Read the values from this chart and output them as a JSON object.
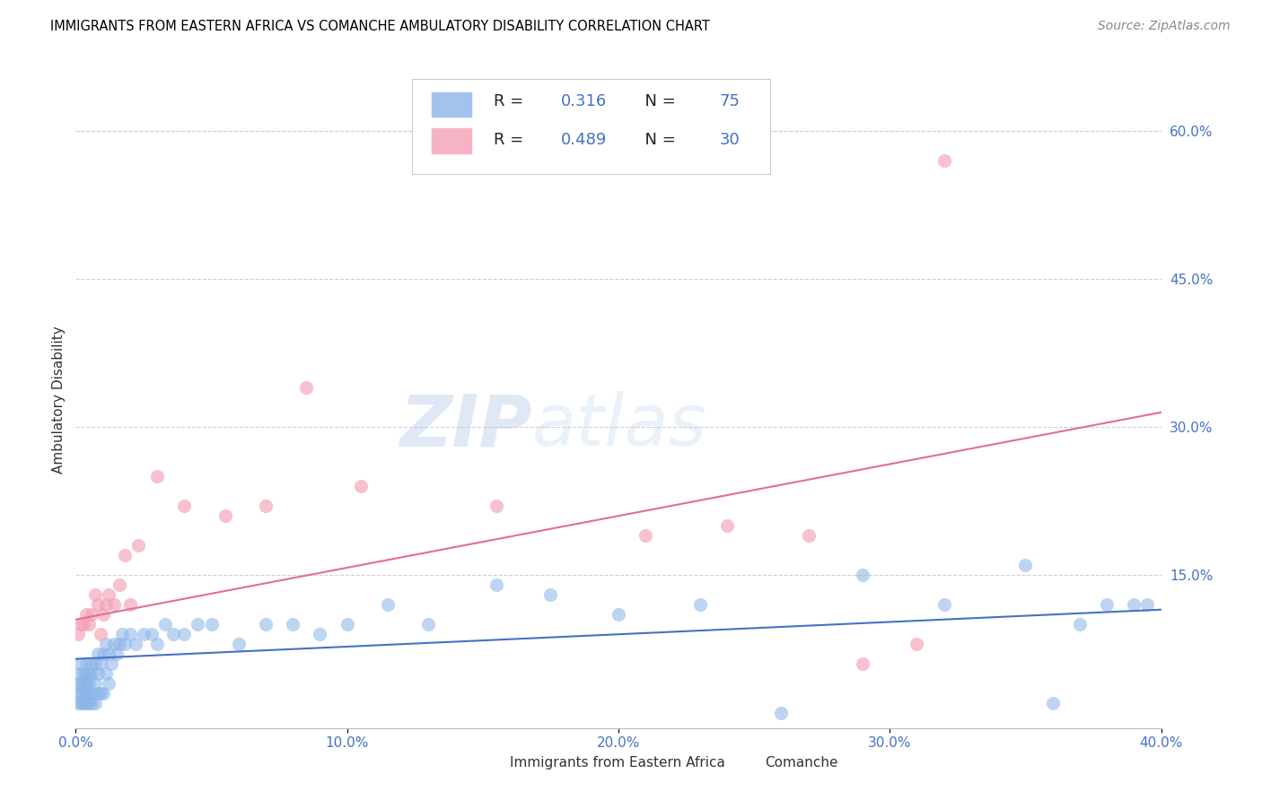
{
  "title": "IMMIGRANTS FROM EASTERN AFRICA VS COMANCHE AMBULATORY DISABILITY CORRELATION CHART",
  "source": "Source: ZipAtlas.com",
  "ylabel": "Ambulatory Disability",
  "right_yticks": [
    0.15,
    0.3,
    0.45,
    0.6
  ],
  "right_yticklabels": [
    "15.0%",
    "30.0%",
    "45.0%",
    "60.0%"
  ],
  "xlim": [
    0.0,
    0.4
  ],
  "ylim": [
    -0.005,
    0.66
  ],
  "xticks": [
    0.0,
    0.1,
    0.2,
    0.3,
    0.4
  ],
  "xticklabels": [
    "0.0%",
    "10.0%",
    "20.0%",
    "30.0%",
    "40.0%"
  ],
  "watermark_zip": "ZIP",
  "watermark_atlas": "atlas",
  "blue_color": "#8ab4e8",
  "pink_color": "#f4a0b5",
  "blue_line_color": "#4472c4",
  "pink_line_color": "#e07090",
  "blue_R": "0.316",
  "blue_N": "75",
  "pink_R": "0.489",
  "pink_N": "30",
  "value_color": "#4472c4",
  "label_color": "#333333",
  "blue_scatter_x": [
    0.001,
    0.001,
    0.001,
    0.001,
    0.002,
    0.002,
    0.002,
    0.002,
    0.003,
    0.003,
    0.003,
    0.003,
    0.004,
    0.004,
    0.004,
    0.004,
    0.004,
    0.005,
    0.005,
    0.005,
    0.005,
    0.006,
    0.006,
    0.006,
    0.006,
    0.007,
    0.007,
    0.007,
    0.008,
    0.008,
    0.008,
    0.009,
    0.009,
    0.01,
    0.01,
    0.011,
    0.011,
    0.012,
    0.012,
    0.013,
    0.014,
    0.015,
    0.016,
    0.017,
    0.018,
    0.02,
    0.022,
    0.025,
    0.028,
    0.03,
    0.033,
    0.036,
    0.04,
    0.045,
    0.05,
    0.06,
    0.07,
    0.08,
    0.09,
    0.1,
    0.115,
    0.13,
    0.155,
    0.175,
    0.2,
    0.23,
    0.26,
    0.29,
    0.32,
    0.35,
    0.36,
    0.37,
    0.38,
    0.39,
    0.395
  ],
  "blue_scatter_y": [
    0.02,
    0.03,
    0.04,
    0.05,
    0.02,
    0.03,
    0.04,
    0.06,
    0.02,
    0.03,
    0.04,
    0.05,
    0.02,
    0.03,
    0.04,
    0.05,
    0.06,
    0.02,
    0.03,
    0.04,
    0.05,
    0.02,
    0.03,
    0.05,
    0.06,
    0.02,
    0.04,
    0.06,
    0.03,
    0.05,
    0.07,
    0.03,
    0.06,
    0.03,
    0.07,
    0.05,
    0.08,
    0.04,
    0.07,
    0.06,
    0.08,
    0.07,
    0.08,
    0.09,
    0.08,
    0.09,
    0.08,
    0.09,
    0.09,
    0.08,
    0.1,
    0.09,
    0.09,
    0.1,
    0.1,
    0.08,
    0.1,
    0.1,
    0.09,
    0.1,
    0.12,
    0.1,
    0.14,
    0.13,
    0.11,
    0.12,
    0.01,
    0.15,
    0.12,
    0.16,
    0.02,
    0.1,
    0.12,
    0.12,
    0.12
  ],
  "pink_scatter_x": [
    0.001,
    0.002,
    0.003,
    0.004,
    0.005,
    0.006,
    0.007,
    0.008,
    0.009,
    0.01,
    0.011,
    0.012,
    0.014,
    0.016,
    0.018,
    0.02,
    0.023,
    0.03,
    0.04,
    0.055,
    0.07,
    0.085,
    0.105,
    0.155,
    0.21,
    0.24,
    0.27,
    0.29,
    0.31,
    0.32
  ],
  "pink_scatter_y": [
    0.09,
    0.1,
    0.1,
    0.11,
    0.1,
    0.11,
    0.13,
    0.12,
    0.09,
    0.11,
    0.12,
    0.13,
    0.12,
    0.14,
    0.17,
    0.12,
    0.18,
    0.25,
    0.22,
    0.21,
    0.22,
    0.34,
    0.24,
    0.22,
    0.19,
    0.2,
    0.19,
    0.06,
    0.08,
    0.57
  ],
  "blue_line_x": [
    0.0,
    0.4
  ],
  "blue_line_y": [
    0.065,
    0.115
  ],
  "pink_line_x": [
    0.0,
    0.4
  ],
  "pink_line_y": [
    0.105,
    0.315
  ],
  "grid_color": "#d0d0d0",
  "bg_color": "#ffffff"
}
